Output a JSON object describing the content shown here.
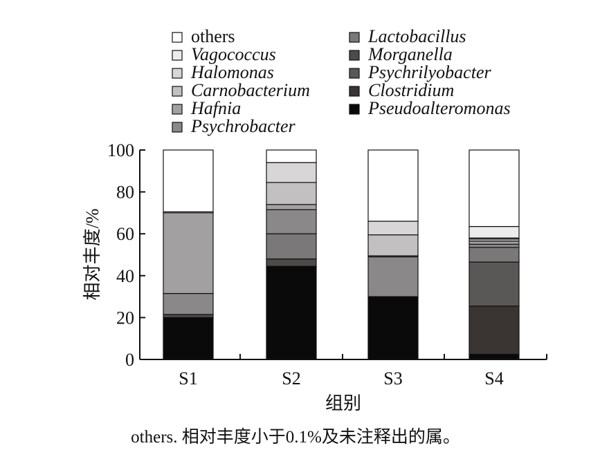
{
  "chart_data": {
    "type": "bar",
    "stacked": true,
    "categories": [
      "S1",
      "S2",
      "S3",
      "S4"
    ],
    "xlabel": "组别",
    "ylabel": "相对丰度/%",
    "ylim": [
      0,
      100
    ],
    "yticks": [
      0,
      20,
      40,
      60,
      80,
      100
    ],
    "legend_position": "top",
    "series": [
      {
        "name": "Pseudoalteromonas",
        "italic": true,
        "color": "#0a0a0a",
        "values": [
          20.0,
          44.5,
          30.0,
          2.5
        ]
      },
      {
        "name": "Clostridium",
        "italic": true,
        "color": "#3a3432",
        "values": [
          0.0,
          0.0,
          0.0,
          23.0
        ]
      },
      {
        "name": "Psychrilyobacter",
        "italic": true,
        "color": "#5a5857",
        "values": [
          0.0,
          0.0,
          0.0,
          21.0
        ]
      },
      {
        "name": "Morganella",
        "italic": true,
        "color": "#4d4b4a",
        "values": [
          1.5,
          3.5,
          0.0,
          0.0
        ]
      },
      {
        "name": "Lactobacillus",
        "italic": true,
        "color": "#7a7878",
        "values": [
          0.0,
          12.0,
          0.0,
          7.0
        ]
      },
      {
        "name": "Psychrobacter",
        "italic": true,
        "color": "#8a8888",
        "values": [
          10.0,
          11.5,
          19.0,
          1.5
        ]
      },
      {
        "name": "Hafnia",
        "italic": true,
        "color": "#a2a0a0",
        "values": [
          38.5,
          2.5,
          0.5,
          1.5
        ]
      },
      {
        "name": "Carnobacterium",
        "italic": true,
        "color": "#c2c0c0",
        "values": [
          0.0,
          10.5,
          10.0,
          1.0
        ]
      },
      {
        "name": "Halomonas",
        "italic": true,
        "color": "#d8d6d6",
        "values": [
          0.5,
          9.5,
          6.5,
          0.5
        ]
      },
      {
        "name": "Vagococcus",
        "italic": true,
        "color": "#ececec",
        "values": [
          0.0,
          0.0,
          0.0,
          5.5
        ]
      },
      {
        "name": "others",
        "italic": false,
        "color": "#ffffff",
        "values": [
          29.5,
          6.0,
          34.0,
          36.5
        ]
      }
    ],
    "legend_order": [
      "others",
      "Vagococcus",
      "Halomonas",
      "Carnobacterium",
      "Hafnia",
      "Psychrobacter",
      "Lactobacillus",
      "Morganella",
      "Psychrilyobacter",
      "Clostridium",
      "Pseudoalteromonas"
    ]
  },
  "caption": "others. 相对丰度小于0.1%及未注释出的属。"
}
